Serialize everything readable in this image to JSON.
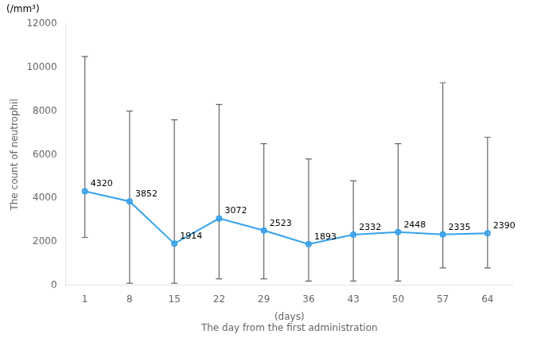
{
  "chart_data": {
    "type": "line",
    "x": [
      1,
      8,
      15,
      22,
      29,
      36,
      43,
      50,
      57,
      64
    ],
    "values": [
      4320,
      3852,
      1914,
      3072,
      2523,
      1893,
      2332,
      2448,
      2335,
      2390
    ],
    "upper": [
      10500,
      8000,
      7600,
      8300,
      6500,
      5800,
      4800,
      6500,
      9300,
      6800
    ],
    "lower": [
      2200,
      100,
      100,
      300,
      300,
      200,
      200,
      200,
      800,
      800
    ],
    "xlabel": [
      "(days)",
      "The day from the first administration"
    ],
    "ylabel": "The count of neutrophil",
    "annotations": [
      "(/mm³)"
    ],
    "xlim": [
      -2,
      68
    ],
    "xticks": [
      1,
      8,
      15,
      22,
      29,
      36,
      43,
      50,
      57,
      64
    ],
    "ylim": [
      0,
      12000
    ],
    "yticks": [
      0,
      2000,
      4000,
      6000,
      8000,
      10000,
      12000
    ],
    "grid": false,
    "data_labels": true,
    "marker": "circle",
    "line_style": "solid"
  }
}
